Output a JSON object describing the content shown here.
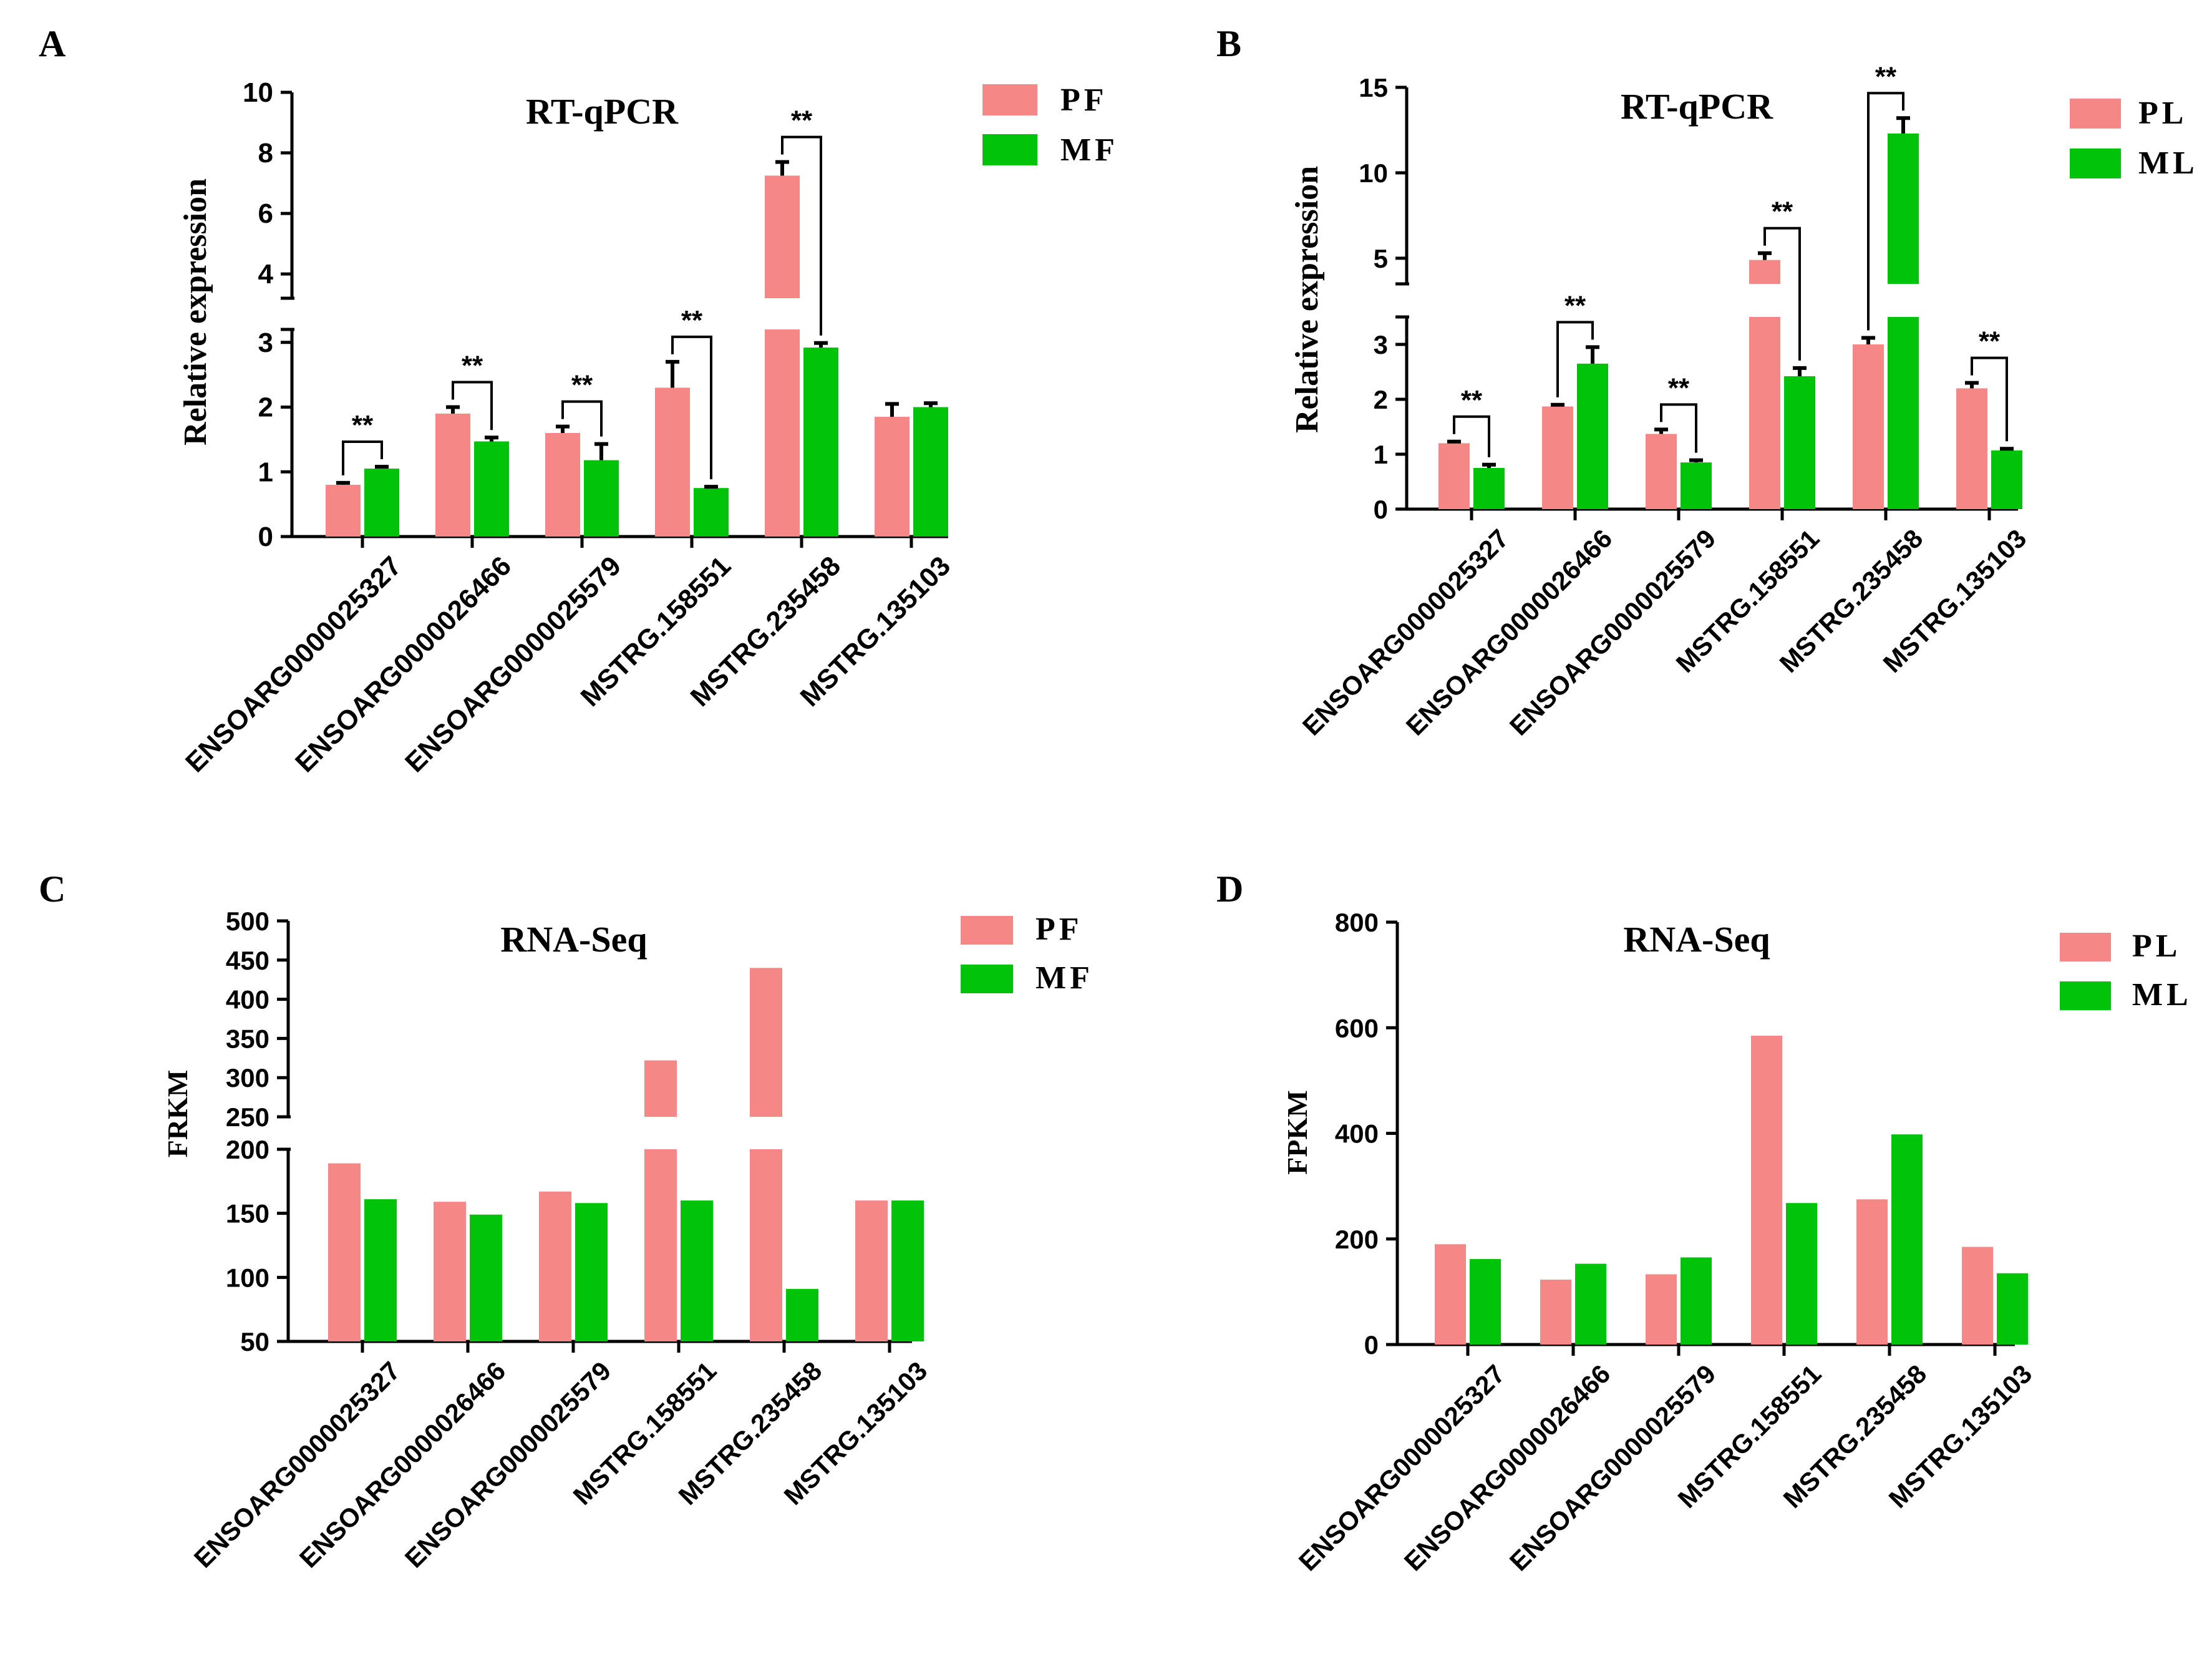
{
  "colors": {
    "pink": "#F58787",
    "green": "#00C30A",
    "axis": "#000000"
  },
  "chart_data": [
    {
      "panel": "A",
      "type": "bar",
      "title": "RT-qPCR",
      "xlabel": "",
      "ylabel": "Relative expression",
      "categories": [
        "ENSOARG0000025327",
        "ENSOARG0000026466",
        "ENSOARG0000025579",
        "MSTRG.158551",
        "MSTRG.235458",
        "MSTRG.135103"
      ],
      "series": [
        {
          "name": "PF",
          "values": [
            0.8,
            1.9,
            1.6,
            2.3,
            7.25,
            1.85
          ],
          "errors": [
            0.03,
            0.1,
            0.1,
            0.4,
            0.45,
            0.2
          ]
        },
        {
          "name": "MF",
          "values": [
            1.05,
            1.47,
            1.18,
            0.75,
            2.92,
            2.0
          ],
          "errors": [
            0.03,
            0.06,
            0.25,
            0.02,
            0.07,
            0.06
          ]
        }
      ],
      "ylim": [
        0,
        10
      ],
      "axis_break": [
        3.2,
        3.2
      ],
      "lower_ticks": [
        "0",
        "1",
        "2",
        "3"
      ],
      "upper_ticks": [
        "4",
        "6",
        "8",
        "10"
      ],
      "significance": [
        "**",
        "**",
        "**",
        "**",
        "**",
        ""
      ],
      "legend": "top-right"
    },
    {
      "panel": "B",
      "type": "bar",
      "title": "RT-qPCR",
      "xlabel": "",
      "ylabel": "Relative expression",
      "categories": [
        "ENSOARG0000025327",
        "ENSOARG0000026466",
        "ENSOARG0000025579",
        "MSTRG.158551",
        "MSTRG.235458",
        "MSTRG.135103"
      ],
      "series": [
        {
          "name": "PL",
          "values": [
            1.2,
            1.87,
            1.37,
            4.9,
            3.0,
            2.2
          ],
          "errors": [
            0.03,
            0.03,
            0.08,
            0.4,
            0.12,
            0.1
          ]
        },
        {
          "name": "ML",
          "values": [
            0.75,
            2.65,
            0.85,
            2.42,
            12.3,
            1.07
          ],
          "errors": [
            0.06,
            0.3,
            0.04,
            0.15,
            0.9,
            0.03
          ]
        }
      ],
      "ylim": [
        0,
        15
      ],
      "axis_break": [
        3.5,
        3.5
      ],
      "lower_ticks": [
        "0",
        "1",
        "2",
        "3"
      ],
      "upper_ticks": [
        "5",
        "10",
        "15"
      ],
      "significance": [
        "**",
        "**",
        "**",
        "**",
        "**",
        "**"
      ],
      "legend": "top-right"
    },
    {
      "panel": "C",
      "type": "bar",
      "title": "RNA-Seq",
      "xlabel": "",
      "ylabel": "FRKM",
      "categories": [
        "ENSOARG0000025327",
        "ENSOARG0000026466",
        "ENSOARG0000025579",
        "MSTRG.158551",
        "MSTRG.235458",
        "MSTRG.135103"
      ],
      "series": [
        {
          "name": "PF",
          "values": [
            189,
            159,
            167,
            322,
            440,
            160
          ]
        },
        {
          "name": "MF",
          "values": [
            161,
            149,
            158,
            160,
            91,
            160
          ]
        }
      ],
      "ylim": [
        50,
        500
      ],
      "axis_break": [
        200,
        250
      ],
      "lower_ticks": [
        "50",
        "100",
        "150",
        "200"
      ],
      "upper_ticks": [
        "250",
        "300",
        "350",
        "400",
        "450",
        "500"
      ],
      "legend": "top-right"
    },
    {
      "panel": "D",
      "type": "bar",
      "title": "RNA-Seq",
      "xlabel": "",
      "ylabel": "FPKM",
      "categories": [
        "ENSOARG0000025327",
        "ENSOARG0000026466",
        "ENSOARG0000025579",
        "MSTRG.158551",
        "MSTRG.235458",
        "MSTRG.135103"
      ],
      "series": [
        {
          "name": "PL",
          "values": [
            190,
            123,
            133,
            585,
            275,
            185
          ]
        },
        {
          "name": "ML",
          "values": [
            162,
            153,
            165,
            268,
            398,
            135
          ]
        }
      ],
      "ylim": [
        0,
        800
      ],
      "ticks": [
        "0",
        "200",
        "400",
        "600",
        "800"
      ],
      "legend": "top-right"
    }
  ]
}
